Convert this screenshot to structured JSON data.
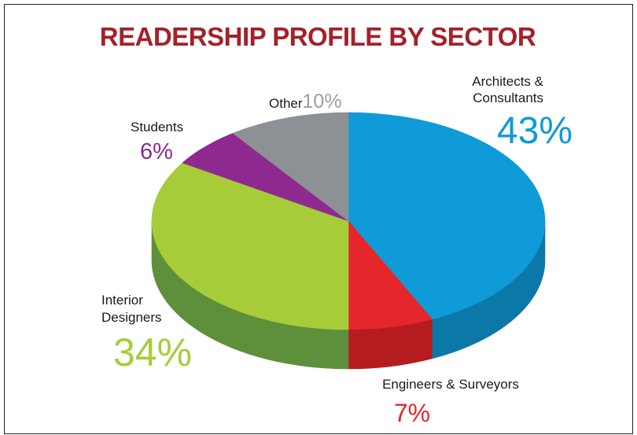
{
  "chart_data": {
    "type": "pie",
    "title": "READERSHIP PROFILE BY SECTOR",
    "slices": [
      {
        "label_lines": [
          "Architects &",
          "Consultants"
        ],
        "value": 43,
        "value_label": "43%",
        "color": "#0f9bd7",
        "side_color": "#0c78a8"
      },
      {
        "label_lines": [
          "Engineers & Surveyors"
        ],
        "value": 7,
        "value_label": "7%",
        "color": "#e5262a",
        "side_color": "#b51c20"
      },
      {
        "label_lines": [
          "Interior",
          "Designers"
        ],
        "value": 34,
        "value_label": "34%",
        "color": "#a6cd39",
        "side_color": "#5e8f3a"
      },
      {
        "label_lines": [
          "Students"
        ],
        "value": 6,
        "value_label": "6%",
        "color": "#8e2a8f",
        "side_color": "#6a1e6b"
      },
      {
        "label_lines": [
          "Other"
        ],
        "value": 10,
        "value_label": "10%",
        "color": "#8d9094",
        "side_color": "#6d7074"
      }
    ]
  },
  "colors": {
    "title": "#a3212b",
    "frame": "#222222"
  }
}
